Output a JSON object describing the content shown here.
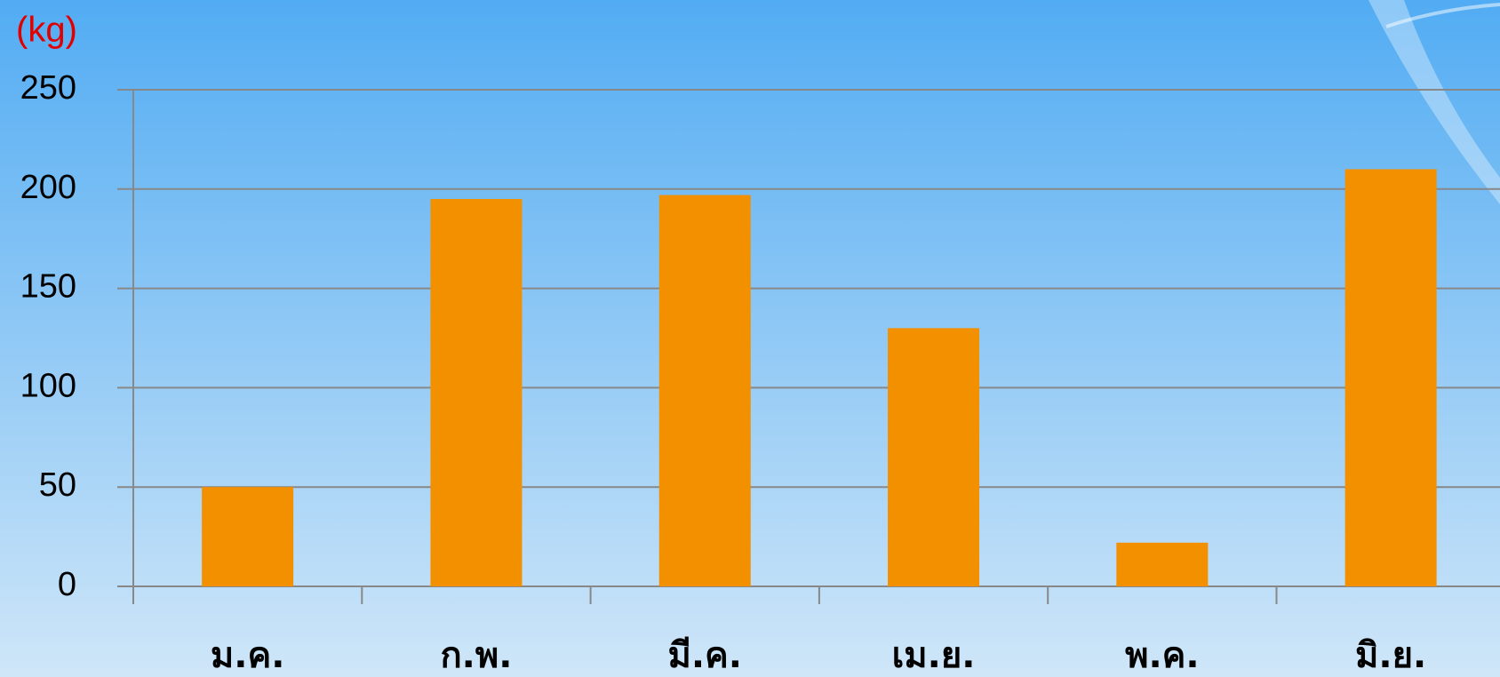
{
  "chart_data": {
    "type": "bar",
    "y_label": "(kg)",
    "categories": [
      "ม.ค.",
      "ก.พ.",
      "มี.ค.",
      "เม.ย.",
      "พ.ค.",
      "มิ.ย."
    ],
    "values": [
      50,
      195,
      197,
      130,
      22,
      210
    ],
    "color": "#f29000",
    "ylim": [
      0,
      250
    ],
    "yticks": [
      0,
      50,
      100,
      150,
      200,
      250
    ],
    "grid": true
  }
}
